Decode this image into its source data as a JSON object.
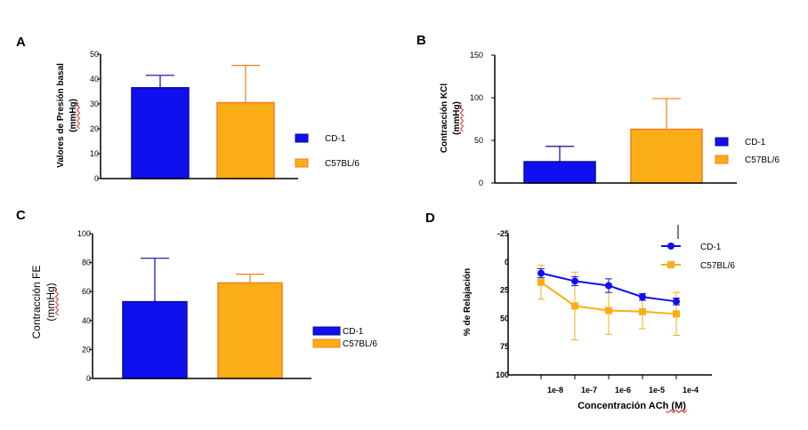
{
  "colors": {
    "cd1": "#1010ee",
    "c57": "#fbad18",
    "c57_edge": "#f57e1a",
    "axis": "#000000"
  },
  "chart_data": [
    {
      "id": "A",
      "type": "bar",
      "title": "",
      "panel_label": "A",
      "ylabel": [
        "Valores de Presión basal",
        "(mmHg)"
      ],
      "ylim": [
        0,
        50
      ],
      "yticks": [
        0,
        10,
        20,
        30,
        40,
        50
      ],
      "ytick_labels": [
        "0",
        "10",
        "20",
        "30",
        "40",
        "50"
      ],
      "legend_position": "right",
      "series": [
        {
          "name": "CD-1",
          "value": 36.5,
          "error": 5
        },
        {
          "name": "C57BL/6",
          "value": 30.5,
          "error": 15
        }
      ]
    },
    {
      "id": "B",
      "type": "bar",
      "title": "",
      "panel_label": "B",
      "ylabel": [
        "Contracción KCl",
        "(mmHg)"
      ],
      "ylim": [
        0,
        150
      ],
      "yticks": [
        0,
        50,
        100,
        150
      ],
      "ytick_labels": [
        "0",
        "50",
        "100",
        "150"
      ],
      "legend_position": "right",
      "series": [
        {
          "name": "CD-1",
          "value": 25,
          "error": 18
        },
        {
          "name": "C57BL/6",
          "value": 63,
          "error": 36
        }
      ]
    },
    {
      "id": "C",
      "type": "bar",
      "title": "",
      "panel_label": "C",
      "ylabel": [
        "Contracción FE",
        "(mmHg)"
      ],
      "ylim": [
        0,
        100
      ],
      "yticks": [
        0,
        20,
        40,
        60,
        80,
        100
      ],
      "ytick_labels": [
        "0",
        "20",
        "40",
        "60",
        "80",
        "100"
      ],
      "legend_position": "right",
      "series": [
        {
          "name": "CD-1",
          "value": 53,
          "error": 30
        },
        {
          "name": "C57BL/6",
          "value": 66,
          "error": 6
        }
      ]
    },
    {
      "id": "D",
      "type": "line",
      "title": "",
      "panel_label": "D",
      "ylabel": [
        "% de Relajación"
      ],
      "xlabel": "Concentración ACh (M)",
      "x": [
        1e-08,
        1e-07,
        1e-06,
        1e-05,
        0.0001
      ],
      "x_tick_labels": [
        "1e-8",
        "1e-7",
        "1e-6",
        "1e-5",
        "1e-4"
      ],
      "ylim": [
        -25,
        100
      ],
      "y_inverted": true,
      "yticks": [
        -25,
        0,
        25,
        50,
        75,
        100
      ],
      "ytick_labels": [
        "-25",
        "0",
        "25",
        "50",
        "75",
        "100"
      ],
      "legend_position": "top-right",
      "series": [
        {
          "name": "CD-1",
          "marker": "circle",
          "values": [
            10,
            17,
            21,
            31,
            35
          ],
          "errors": [
            4,
            4,
            6,
            3,
            3
          ]
        },
        {
          "name": "C57BL/6",
          "marker": "square",
          "values": [
            18,
            39,
            43,
            44,
            46
          ],
          "errors": [
            15,
            30,
            21,
            15,
            19
          ]
        }
      ]
    }
  ]
}
